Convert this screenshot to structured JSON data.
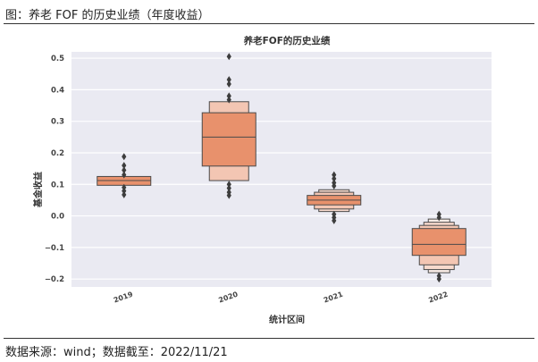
{
  "caption": "图：养老 FOF 的历史业绩（年度收益）",
  "source": "数据来源：wind；数据截至：2022/11/21",
  "colors": {
    "plot_bg": "#eaeaf2",
    "grid": "#ffffff",
    "box_fill": "#e8916c",
    "box_edge": "#4a4a4a",
    "outlier": "#3d3d3d",
    "tick_text": "#444444",
    "title_text": "#333333"
  },
  "chart_data": {
    "type": "boxen",
    "title": "养老FOF的历史业绩",
    "xlabel": "统计区间",
    "ylabel": "基金收益",
    "ylim": [
      -0.225,
      0.52
    ],
    "yticks": [
      0.5,
      0.4,
      0.3,
      0.2,
      0.1,
      0.0,
      -0.1,
      -0.2
    ],
    "ytick_labels": [
      "0.5",
      "0.4",
      "0.3",
      "0.2",
      "0.1",
      "0.0",
      "−0.1",
      "−0.2"
    ],
    "grid": true,
    "categories": [
      "2019",
      "2020",
      "2021",
      "2022"
    ],
    "series": [
      {
        "category": "2019",
        "median": 0.112,
        "boxes": [
          [
            0.097,
            0.125
          ]
        ],
        "outliers": [
          0.188,
          0.16,
          0.145,
          0.13,
          0.09,
          0.079,
          0.067
        ]
      },
      {
        "category": "2020",
        "median": 0.25,
        "boxes": [
          [
            0.158,
            0.327
          ],
          [
            0.112,
            0.362
          ]
        ],
        "outliers": [
          0.505,
          0.432,
          0.418,
          0.38,
          0.368,
          0.1,
          0.088,
          0.075,
          0.065
        ]
      },
      {
        "category": "2021",
        "median": 0.05,
        "boxes": [
          [
            0.035,
            0.065
          ],
          [
            0.022,
            0.075
          ],
          [
            0.014,
            0.083
          ]
        ],
        "outliers": [
          0.13,
          0.118,
          0.105,
          0.095,
          0.005,
          -0.005,
          -0.015
        ]
      },
      {
        "category": "2022",
        "median": -0.09,
        "boxes": [
          [
            -0.125,
            -0.04
          ],
          [
            -0.155,
            -0.03
          ],
          [
            -0.17,
            -0.02
          ],
          [
            -0.18,
            -0.01
          ]
        ],
        "outliers": [
          0.005,
          -0.005,
          -0.19,
          -0.2
        ]
      }
    ]
  }
}
